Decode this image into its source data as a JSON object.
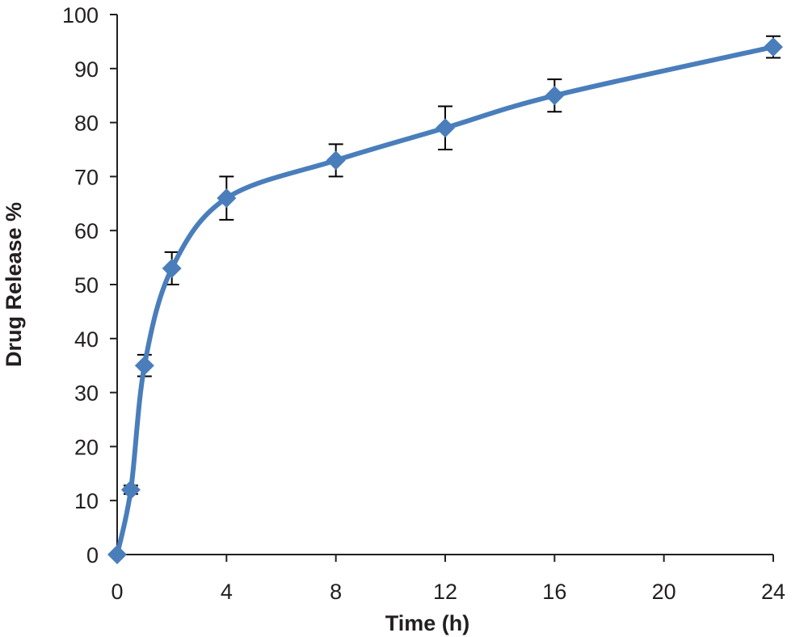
{
  "chart_data": {
    "type": "line",
    "title": "",
    "xlabel": "Time (h)",
    "ylabel": "Drug Release %",
    "xlim": [
      0,
      24
    ],
    "ylim": [
      0,
      100
    ],
    "xticks": [
      0,
      4,
      8,
      12,
      16,
      20,
      24
    ],
    "yticks": [
      0,
      10,
      20,
      30,
      40,
      50,
      60,
      70,
      80,
      90,
      100
    ],
    "grid": false,
    "legend": "none",
    "smooth": true,
    "marker": "diamond",
    "series": [
      {
        "color": "#4a7ebb",
        "x": [
          0,
          0.5,
          1,
          2,
          4,
          8,
          12,
          16,
          24
        ],
        "y": [
          0,
          12,
          35,
          53,
          66,
          73,
          79,
          85,
          94
        ],
        "error": [
          0,
          0.8,
          2,
          3,
          4,
          3,
          4,
          3,
          2
        ]
      }
    ]
  }
}
